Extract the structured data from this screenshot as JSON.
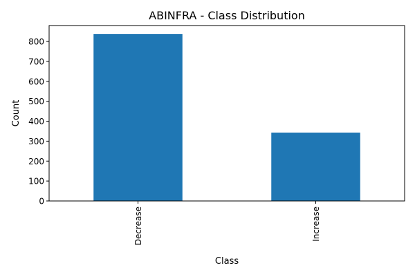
{
  "chart_data": {
    "type": "bar",
    "title": "ABINFRA - Class Distribution",
    "xlabel": "Class",
    "ylabel": "Count",
    "categories": [
      "Decrease",
      "Increase"
    ],
    "values": [
      838,
      343
    ],
    "ylim": [
      0,
      880
    ],
    "yticks": [
      0,
      100,
      200,
      300,
      400,
      500,
      600,
      700,
      800
    ],
    "grid": false,
    "legend": "none",
    "colors": {
      "bar": "#1f77b4",
      "axis": "#000000",
      "background": "#ffffff"
    }
  }
}
